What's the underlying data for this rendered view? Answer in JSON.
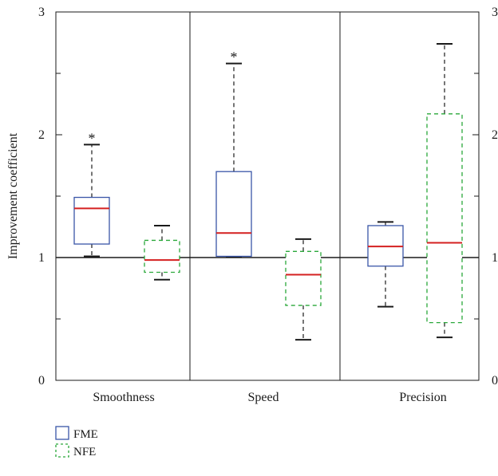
{
  "chart_data": {
    "type": "box",
    "title": "",
    "ylabel": "Improvement coefficient",
    "ylim": [
      0,
      3
    ],
    "yticks": [
      "0",
      "1",
      "2",
      "3"
    ],
    "reference_line": 1,
    "categories": [
      "Smoothness",
      "Speed",
      "Precision"
    ],
    "series": [
      {
        "name": "FME",
        "color": "#3a56a8",
        "dash": false,
        "boxes": [
          {
            "category": "Smoothness",
            "whisker_low": 1.01,
            "q1": 1.11,
            "median": 1.4,
            "q3": 1.49,
            "whisker_high": 1.92,
            "outlier_marker": "*"
          },
          {
            "category": "Speed",
            "whisker_low": 1.01,
            "q1": 1.01,
            "median": 1.2,
            "q3": 1.7,
            "whisker_high": 2.58,
            "outlier_marker": "*"
          },
          {
            "category": "Precision",
            "whisker_low": 0.6,
            "q1": 0.93,
            "median": 1.09,
            "q3": 1.26,
            "whisker_high": 1.29,
            "outlier_marker": ""
          }
        ]
      },
      {
        "name": "NFE",
        "color": "#2aa83a",
        "dash": true,
        "boxes": [
          {
            "category": "Smoothness",
            "whisker_low": 0.82,
            "q1": 0.88,
            "median": 0.98,
            "q3": 1.14,
            "whisker_high": 1.26,
            "outlier_marker": ""
          },
          {
            "category": "Speed",
            "whisker_low": 0.33,
            "q1": 0.61,
            "median": 0.86,
            "q3": 1.05,
            "whisker_high": 1.15,
            "outlier_marker": ""
          },
          {
            "category": "Precision",
            "whisker_low": 0.35,
            "q1": 0.47,
            "median": 1.12,
            "q3": 2.17,
            "whisker_high": 2.74,
            "outlier_marker": ""
          }
        ]
      }
    ],
    "median_color": "#d42020",
    "legend_position": "bottom-left"
  }
}
